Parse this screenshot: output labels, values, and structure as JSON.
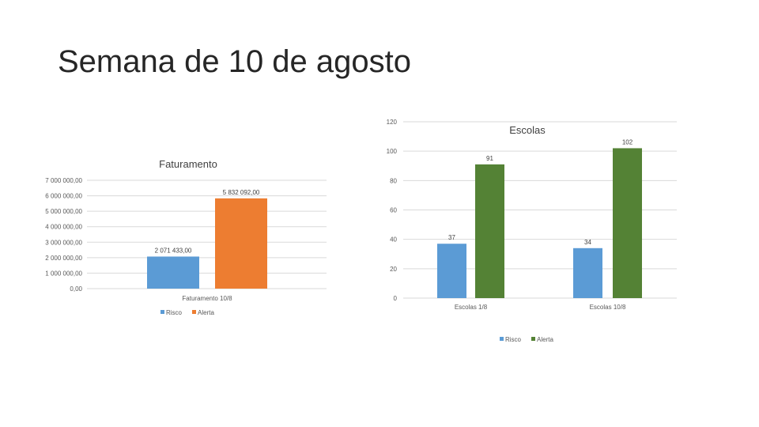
{
  "slide": {
    "title": "Semana de 10 de agosto"
  },
  "chart_data": [
    {
      "type": "bar",
      "title": "Faturamento",
      "categories": [
        "Faturamento 10/8"
      ],
      "series": [
        {
          "name": "Risco",
          "values": [
            2071433
          ],
          "labels": [
            "2 071 433,00"
          ],
          "color": "#5b9bd5"
        },
        {
          "name": "Alerta",
          "values": [
            5832092
          ],
          "labels": [
            "5 832 092,00"
          ],
          "color": "#ed7d31"
        }
      ],
      "ylim": [
        0,
        7000000
      ],
      "yticks": [
        0,
        1000000,
        2000000,
        3000000,
        4000000,
        5000000,
        6000000,
        7000000
      ],
      "ytick_labels": [
        "0,00",
        "1 000 000,00",
        "2 000 000,00",
        "3 000 000,00",
        "4 000 000,00",
        "5 000 000,00",
        "6 000 000,00",
        "7 000 000,00"
      ],
      "grid": true,
      "legend": "bottom"
    },
    {
      "type": "bar",
      "title": "Escolas",
      "categories": [
        "Escolas 1/8",
        "Escolas 10/8"
      ],
      "series": [
        {
          "name": "Risco",
          "values": [
            37,
            34
          ],
          "labels": [
            "37",
            "34"
          ],
          "color": "#5b9bd5"
        },
        {
          "name": "Alerta",
          "values": [
            91,
            102
          ],
          "labels": [
            "91",
            "102"
          ],
          "color": "#548235"
        }
      ],
      "ylim": [
        0,
        120
      ],
      "yticks": [
        0,
        20,
        40,
        60,
        80,
        100,
        120
      ],
      "ytick_labels": [
        "0",
        "20",
        "40",
        "60",
        "80",
        "100",
        "120"
      ],
      "grid": true,
      "legend": "bottom"
    }
  ]
}
